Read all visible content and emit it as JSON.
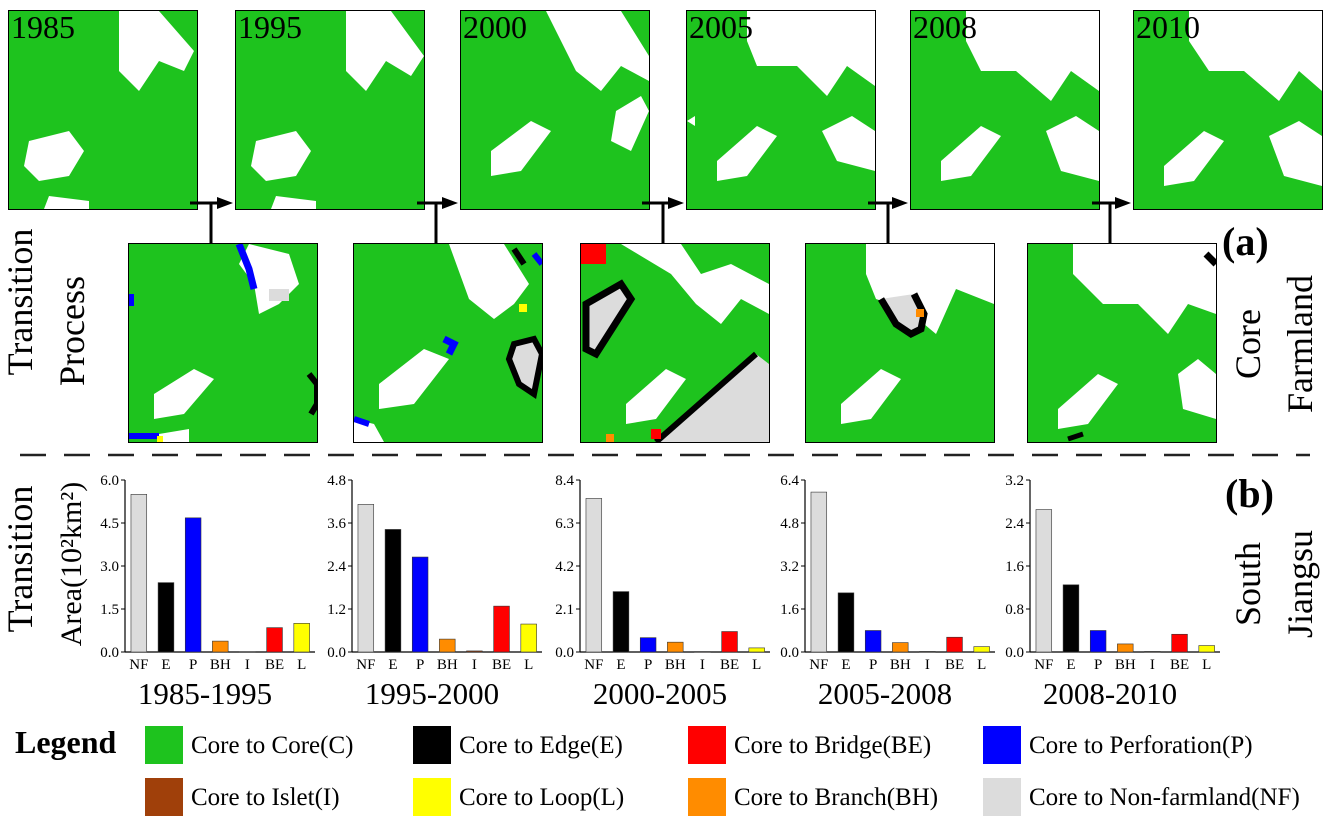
{
  "panel_labels": {
    "a": "(a)",
    "b": "(b)"
  },
  "side_labels": {
    "left_top": [
      "Transition",
      "Process"
    ],
    "left_bottom": [
      "Transition",
      "Area(10²km²)"
    ],
    "right_top": [
      "Core",
      "Farmland"
    ],
    "right_bottom": [
      "South",
      "Jiangsu"
    ]
  },
  "years": [
    "1985",
    "1995",
    "2000",
    "2005",
    "2008",
    "2010"
  ],
  "legend": {
    "title": "Legend",
    "items": [
      {
        "label": "Core to Core(C)",
        "color": "#1ec31e"
      },
      {
        "label": "Core to Edge(E)",
        "color": "#000000"
      },
      {
        "label": "Core to Bridge(BE)",
        "color": "#ff0000"
      },
      {
        "label": "Core to Perforation(P)",
        "color": "#0000ff"
      },
      {
        "label": "Core to Islet(I)",
        "color": "#a0400a"
      },
      {
        "label": "Core to Loop(L)",
        "color": "#ffff00"
      },
      {
        "label": "Core to Branch(BH)",
        "color": "#ff8c00"
      },
      {
        "label": "Core to Non-farmland(NF)",
        "color": "#dcdcdc"
      }
    ]
  },
  "chart_data": [
    {
      "type": "bar",
      "title": "1985-1995",
      "categories": [
        "NF",
        "E",
        "P",
        "BH",
        "I",
        "BE",
        "L"
      ],
      "values": [
        5.5,
        2.42,
        4.68,
        0.38,
        0.01,
        0.85,
        1.0
      ],
      "ylim": [
        0,
        6.0
      ],
      "yticks": [
        "0.0",
        "1.5",
        "3.0",
        "4.5",
        "6.0"
      ]
    },
    {
      "type": "bar",
      "title": "1995-2000",
      "categories": [
        "NF",
        "E",
        "P",
        "BH",
        "I",
        "BE",
        "L"
      ],
      "values": [
        4.12,
        3.42,
        2.65,
        0.36,
        0.03,
        1.28,
        0.78
      ],
      "ylim": [
        0,
        4.8
      ],
      "yticks": [
        "0.0",
        "1.2",
        "2.4",
        "3.6",
        "4.8"
      ]
    },
    {
      "type": "bar",
      "title": "2000-2005",
      "categories": [
        "NF",
        "E",
        "P",
        "BH",
        "I",
        "BE",
        "L"
      ],
      "values": [
        7.5,
        2.95,
        0.7,
        0.48,
        0.02,
        1.0,
        0.2
      ],
      "ylim": [
        0,
        8.4
      ],
      "yticks": [
        "0.0",
        "2.1",
        "4.2",
        "6.3",
        "8.4"
      ]
    },
    {
      "type": "bar",
      "title": "2005-2008",
      "categories": [
        "NF",
        "E",
        "P",
        "BH",
        "I",
        "BE",
        "L"
      ],
      "values": [
        5.95,
        2.2,
        0.8,
        0.35,
        0.02,
        0.55,
        0.2
      ],
      "ylim": [
        0,
        6.4
      ],
      "yticks": [
        "0.0",
        "1.6",
        "3.2",
        "4.8",
        "6.4"
      ]
    },
    {
      "type": "bar",
      "title": "2008-2010",
      "categories": [
        "NF",
        "E",
        "P",
        "BH",
        "I",
        "BE",
        "L"
      ],
      "values": [
        2.65,
        1.25,
        0.4,
        0.15,
        0.01,
        0.33,
        0.12
      ],
      "ylim": [
        0,
        3.2
      ],
      "yticks": [
        "0.0",
        "0.8",
        "1.6",
        "2.4",
        "3.2"
      ]
    }
  ]
}
